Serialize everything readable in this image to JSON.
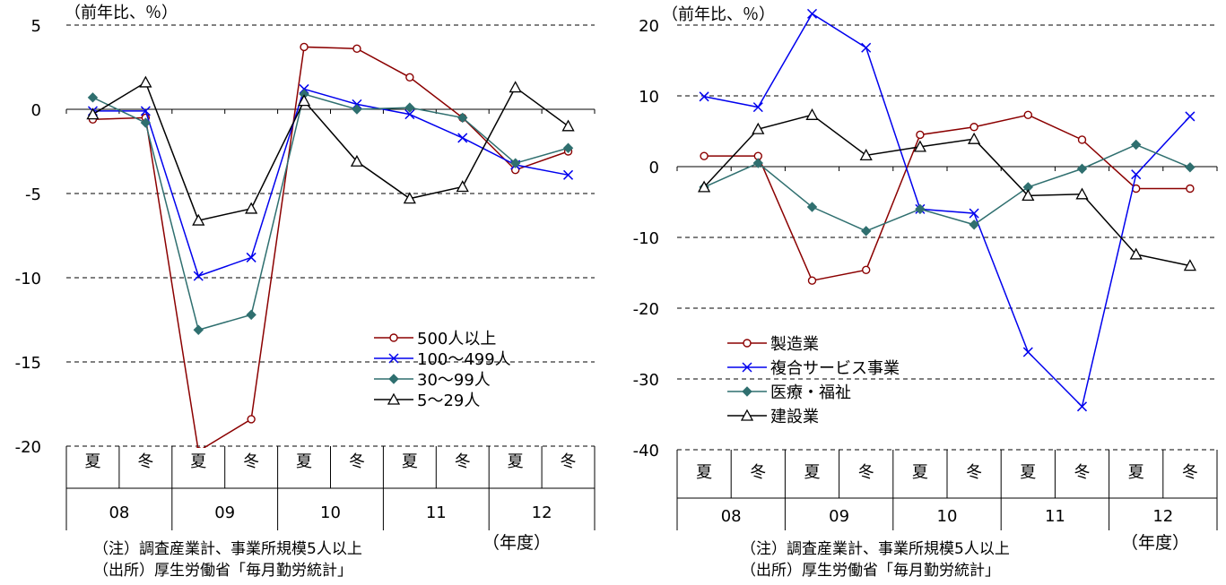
{
  "chart_data": [
    {
      "type": "line",
      "unit_label": "（前年比、％）",
      "ylim": [
        -20,
        5
      ],
      "y_ticks": [
        "5",
        "0",
        "-5",
        "-10",
        "-15",
        "-20"
      ],
      "seasons": [
        "夏",
        "冬",
        "夏",
        "冬",
        "夏",
        "冬",
        "夏",
        "冬",
        "夏",
        "冬"
      ],
      "years": [
        "08",
        "09",
        "10",
        "11",
        "12"
      ],
      "fiscal_year_label": "（年度）",
      "notes": [
        "（注）調査産業計、事業所規模5人以上",
        "（出所）厚生労働省「毎月勤労統計」"
      ],
      "legend_position": "middle-right",
      "series": [
        {
          "name": "500人以上",
          "marker": "circle",
          "color": "#8b0000",
          "values": [
            -0.6,
            -0.5,
            -20.3,
            -18.4,
            3.7,
            3.6,
            1.9,
            -0.5,
            -3.6,
            -2.5
          ]
        },
        {
          "name": "100～499人",
          "marker": "cross",
          "color": "#0000ee",
          "values": [
            -0.1,
            -0.1,
            -9.9,
            -8.8,
            1.2,
            0.3,
            -0.3,
            -1.7,
            -3.3,
            -3.9
          ]
        },
        {
          "name": "30～99人",
          "marker": "diamond",
          "color": "#2f6f6f",
          "values": [
            0.7,
            -0.8,
            -13.1,
            -12.2,
            0.9,
            0.0,
            0.1,
            -0.5,
            -3.2,
            -2.3
          ]
        },
        {
          "name": "5～29人",
          "marker": "triangle",
          "color": "#000000",
          "values": [
            -0.3,
            1.6,
            -6.6,
            -5.9,
            0.5,
            -3.1,
            -5.3,
            -4.6,
            1.3,
            -1.0
          ]
        }
      ]
    },
    {
      "type": "line",
      "unit_label": "（前年比、％）",
      "ylim": [
        -40,
        20
      ],
      "y_ticks": [
        "20",
        "10",
        "0",
        "-10",
        "-20",
        "-30",
        "-40"
      ],
      "seasons": [
        "夏",
        "冬",
        "夏",
        "冬",
        "夏",
        "冬",
        "夏",
        "冬",
        "夏",
        "冬"
      ],
      "years": [
        "08",
        "09",
        "10",
        "11",
        "12"
      ],
      "fiscal_year_label": "（年度）",
      "notes": [
        "（注）調査産業計、事業所規模5人以上",
        "（出所）厚生労働省「毎月勤労統計」"
      ],
      "legend_position": "bottom-left",
      "series": [
        {
          "name": "製造業",
          "marker": "circle",
          "color": "#8b0000",
          "values": [
            1.5,
            1.5,
            -16.1,
            -14.6,
            4.5,
            5.6,
            7.3,
            3.8,
            -3.1,
            -3.1
          ]
        },
        {
          "name": "複合サービス事業",
          "marker": "cross",
          "color": "#0000ee",
          "values": [
            9.9,
            8.4,
            21.6,
            16.8,
            -6.0,
            -6.6,
            -26.2,
            -33.9,
            -1.1,
            7.1
          ]
        },
        {
          "name": "医療・福祉",
          "marker": "diamond",
          "color": "#2f6f6f",
          "values": [
            -2.9,
            0.5,
            -5.7,
            -9.1,
            -6.0,
            -8.2,
            -2.9,
            -0.3,
            3.1,
            -0.1
          ]
        },
        {
          "name": "建設業",
          "marker": "triangle",
          "color": "#000000",
          "values": [
            -2.9,
            5.3,
            7.3,
            1.6,
            2.8,
            3.9,
            -4.1,
            -3.9,
            -12.4,
            -14.0
          ]
        }
      ]
    }
  ]
}
